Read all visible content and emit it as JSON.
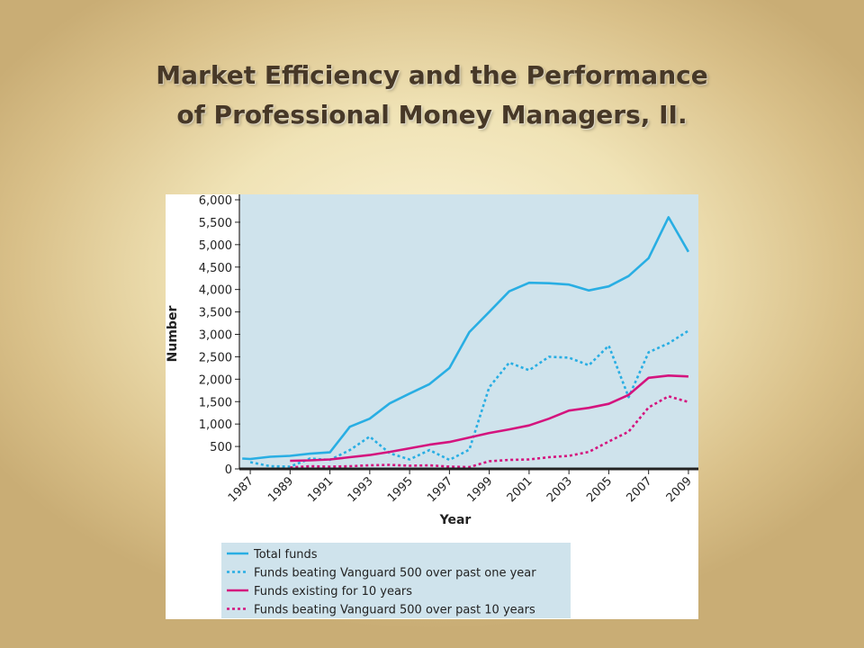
{
  "slide": {
    "title_line1": "Market Efficiency and the Performance",
    "title_line2": "of Professional Money Managers, II."
  },
  "chart_data": {
    "type": "line",
    "xlabel": "Year",
    "ylabel": "Number",
    "ylim": [
      0,
      6000
    ],
    "xlim": [
      1986.5,
      2009.5
    ],
    "y_ticks": [
      "0",
      "500",
      "1,000",
      "1,500",
      "2,000",
      "2,500",
      "3,000",
      "3,500",
      "4,000",
      "4,500",
      "5,000",
      "5,500",
      "6,000"
    ],
    "x_ticks": [
      "1987",
      "1989",
      "1991",
      "1993",
      "1995",
      "1997",
      "1999",
      "2001",
      "2003",
      "2005",
      "2007",
      "2009"
    ],
    "x_tick_values": [
      1987,
      1989,
      1991,
      1993,
      1995,
      1997,
      1999,
      2001,
      2003,
      2005,
      2007,
      2009
    ],
    "plot_background": "#cfe3ec",
    "legend_background": "#cfe3ec",
    "legend_placement": "bottom",
    "grid": false,
    "series": [
      {
        "name": "Total funds",
        "color": "#29aee3",
        "dash": "solid",
        "x": [
          1986.6,
          1987,
          1988,
          1989,
          1990,
          1991,
          1992,
          1993,
          1994,
          1995,
          1996,
          1997,
          1998,
          1999,
          2000,
          2001,
          2002,
          2003,
          2004,
          2005,
          2006,
          2007,
          2008,
          2009
        ],
        "y": [
          230,
          220,
          270,
          290,
          340,
          370,
          940,
          1120,
          1460,
          1680,
          1890,
          2250,
          3050,
          3500,
          3960,
          4150,
          4140,
          4110,
          3980,
          4070,
          4300,
          4700,
          5610,
          4840
        ]
      },
      {
        "name": "Funds beating Vanguard 500 over past one year",
        "color": "#29aee3",
        "dash": "dotted",
        "x": [
          1987,
          1988,
          1989,
          1990,
          1991,
          1992,
          1993,
          1994,
          1995,
          1996,
          1997,
          1998,
          1999,
          2000,
          2001,
          2002,
          2003,
          2004,
          2005,
          2006,
          2007,
          2008,
          2009
        ],
        "y": [
          150,
          60,
          50,
          230,
          200,
          420,
          720,
          350,
          210,
          420,
          200,
          430,
          1820,
          2370,
          2200,
          2500,
          2480,
          2310,
          2750,
          1600,
          2600,
          2800,
          3080
        ]
      },
      {
        "name": "Funds existing for 10 years",
        "color": "#d4147e",
        "dash": "solid",
        "x": [
          1989,
          1990,
          1991,
          1992,
          1993,
          1994,
          1995,
          1996,
          1997,
          1998,
          1999,
          2000,
          2001,
          2002,
          2003,
          2004,
          2005,
          2006,
          2007,
          2008,
          2009
        ],
        "y": [
          180,
          190,
          210,
          260,
          310,
          380,
          460,
          540,
          600,
          700,
          800,
          880,
          970,
          1120,
          1300,
          1360,
          1450,
          1650,
          2030,
          2080,
          2060
        ]
      },
      {
        "name": "Funds beating Vanguard 500 over past 10 years",
        "color": "#d4147e",
        "dash": "dotted",
        "x": [
          1989,
          1990,
          1991,
          1992,
          1993,
          1994,
          1995,
          1996,
          1997,
          1998,
          1999,
          2000,
          2001,
          2002,
          2003,
          2004,
          2005,
          2006,
          2007,
          2008,
          2009
        ],
        "y": [
          30,
          60,
          50,
          60,
          80,
          90,
          70,
          80,
          50,
          40,
          170,
          200,
          210,
          260,
          290,
          380,
          610,
          830,
          1370,
          1620,
          1490
        ]
      }
    ]
  }
}
